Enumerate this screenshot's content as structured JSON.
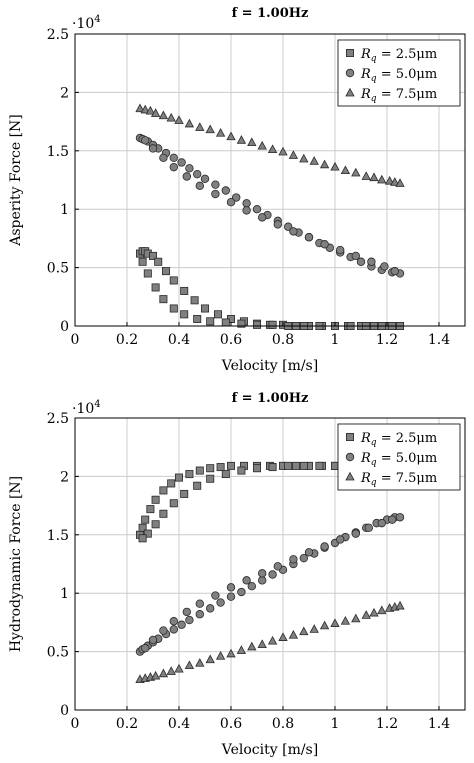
{
  "chart_data": [
    {
      "type": "scatter",
      "title": "f = 1.00Hz",
      "xlabel": "Velocity [m/s]",
      "ylabel": "Asperity Force [N]",
      "y_multiplier": "·10",
      "y_multiplier_exp": "4",
      "xlim": [
        0,
        1.5
      ],
      "ylim": [
        0,
        2.5
      ],
      "xticks": [
        "0",
        "0.2",
        "0.4",
        "0.6",
        "0.8",
        "1",
        "1.2",
        "1.4"
      ],
      "yticks": [
        "0",
        "0.5",
        "1",
        "1.5",
        "2",
        "2.5"
      ],
      "grid": true,
      "legend_position": "top-right",
      "series": [
        {
          "name": "2.5μm",
          "var": "R",
          "sub": "q",
          "marker": "square",
          "x": [
            0.25,
            0.26,
            0.27,
            0.28,
            0.3,
            0.32,
            0.35,
            0.38,
            0.42,
            0.46,
            0.5,
            0.55,
            0.6,
            0.65,
            0.7,
            0.75,
            0.8,
            0.85,
            0.9,
            0.95,
            1.0,
            1.05,
            1.1,
            1.15,
            1.2,
            1.25,
            1.22,
            1.18,
            1.12,
            1.06,
            1.0,
            0.94,
            0.88,
            0.82,
            0.76,
            0.7,
            0.64,
            0.58,
            0.52,
            0.47,
            0.42,
            0.38,
            0.34,
            0.31,
            0.28,
            0.26
          ],
          "y": [
            0.62,
            0.64,
            0.64,
            0.62,
            0.6,
            0.55,
            0.47,
            0.39,
            0.3,
            0.22,
            0.15,
            0.1,
            0.06,
            0.04,
            0.02,
            0.01,
            0.01,
            0.0,
            0.0,
            0.0,
            0.0,
            0.0,
            0.0,
            0.0,
            0.0,
            0.0,
            0.0,
            0.0,
            0.0,
            0.0,
            0.0,
            0.0,
            0.0,
            0.0,
            0.01,
            0.01,
            0.02,
            0.03,
            0.04,
            0.06,
            0.1,
            0.15,
            0.23,
            0.33,
            0.45,
            0.55
          ]
        },
        {
          "name": "5.0μm",
          "var": "R",
          "sub": "q",
          "marker": "circle",
          "x": [
            0.25,
            0.26,
            0.28,
            0.3,
            0.32,
            0.35,
            0.38,
            0.41,
            0.44,
            0.47,
            0.5,
            0.54,
            0.58,
            0.62,
            0.66,
            0.7,
            0.74,
            0.78,
            0.82,
            0.86,
            0.9,
            0.94,
            0.98,
            1.02,
            1.06,
            1.1,
            1.14,
            1.18,
            1.22,
            1.25,
            1.23,
            1.19,
            1.14,
            1.08,
            1.02,
            0.96,
            0.9,
            0.84,
            0.78,
            0.72,
            0.66,
            0.6,
            0.54,
            0.48,
            0.43,
            0.38,
            0.34,
            0.3,
            0.27
          ],
          "y": [
            1.61,
            1.6,
            1.58,
            1.55,
            1.52,
            1.48,
            1.44,
            1.4,
            1.35,
            1.3,
            1.26,
            1.21,
            1.16,
            1.1,
            1.05,
            1.0,
            0.95,
            0.9,
            0.85,
            0.8,
            0.76,
            0.71,
            0.67,
            0.63,
            0.59,
            0.55,
            0.51,
            0.48,
            0.46,
            0.45,
            0.47,
            0.51,
            0.55,
            0.6,
            0.65,
            0.7,
            0.76,
            0.81,
            0.87,
            0.93,
            0.99,
            1.06,
            1.13,
            1.2,
            1.28,
            1.36,
            1.44,
            1.52,
            1.59
          ]
        },
        {
          "name": "7.5μm",
          "var": "R",
          "sub": "q",
          "marker": "triangle",
          "x": [
            0.25,
            0.27,
            0.29,
            0.31,
            0.34,
            0.37,
            0.4,
            0.44,
            0.48,
            0.52,
            0.56,
            0.6,
            0.64,
            0.68,
            0.72,
            0.76,
            0.8,
            0.84,
            0.88,
            0.92,
            0.96,
            1.0,
            1.04,
            1.08,
            1.12,
            1.15,
            1.18,
            1.21,
            1.23,
            1.25
          ],
          "y": [
            1.86,
            1.85,
            1.84,
            1.82,
            1.8,
            1.78,
            1.76,
            1.73,
            1.7,
            1.68,
            1.65,
            1.62,
            1.59,
            1.57,
            1.54,
            1.51,
            1.49,
            1.46,
            1.43,
            1.41,
            1.38,
            1.36,
            1.33,
            1.31,
            1.28,
            1.27,
            1.25,
            1.24,
            1.23,
            1.22
          ]
        }
      ]
    },
    {
      "type": "scatter",
      "title": "f = 1.00Hz",
      "xlabel": "Velocity [m/s]",
      "ylabel": "Hydrodynamic Force [N]",
      "y_multiplier": "·10",
      "y_multiplier_exp": "4",
      "xlim": [
        0,
        1.5
      ],
      "ylim": [
        0,
        2.5
      ],
      "xticks": [
        "0",
        "0.2",
        "0.4",
        "0.6",
        "0.8",
        "1",
        "1.2",
        "1.4"
      ],
      "yticks": [
        "0",
        "0.5",
        "1",
        "1.5",
        "2",
        "2.5"
      ],
      "grid": true,
      "legend_position": "top-right",
      "series": [
        {
          "name": "2.5μm",
          "var": "R",
          "sub": "q",
          "marker": "square",
          "x": [
            0.25,
            0.26,
            0.27,
            0.29,
            0.31,
            0.34,
            0.37,
            0.4,
            0.44,
            0.48,
            0.52,
            0.56,
            0.6,
            0.65,
            0.7,
            0.75,
            0.8,
            0.85,
            0.9,
            0.95,
            1.0,
            1.05,
            1.1,
            1.15,
            1.2,
            1.25,
            1.22,
            1.17,
            1.12,
            1.06,
            1.0,
            0.94,
            0.88,
            0.82,
            0.76,
            0.7,
            0.64,
            0.58,
            0.52,
            0.47,
            0.42,
            0.38,
            0.34,
            0.31,
            0.28,
            0.26
          ],
          "y": [
            1.5,
            1.56,
            1.63,
            1.72,
            1.8,
            1.88,
            1.94,
            1.99,
            2.02,
            2.05,
            2.07,
            2.08,
            2.09,
            2.09,
            2.09,
            2.09,
            2.09,
            2.09,
            2.09,
            2.09,
            2.09,
            2.1,
            2.1,
            2.1,
            2.1,
            2.1,
            2.1,
            2.1,
            2.1,
            2.1,
            2.09,
            2.09,
            2.09,
            2.09,
            2.08,
            2.07,
            2.05,
            2.02,
            1.98,
            1.92,
            1.85,
            1.77,
            1.68,
            1.59,
            1.51,
            1.47
          ]
        },
        {
          "name": "5.0μm",
          "var": "R",
          "sub": "q",
          "marker": "circle",
          "x": [
            0.25,
            0.26,
            0.28,
            0.3,
            0.32,
            0.35,
            0.38,
            0.41,
            0.44,
            0.48,
            0.52,
            0.56,
            0.6,
            0.64,
            0.68,
            0.72,
            0.76,
            0.8,
            0.84,
            0.88,
            0.92,
            0.96,
            1.0,
            1.04,
            1.08,
            1.12,
            1.16,
            1.2,
            1.23,
            1.25,
            1.22,
            1.18,
            1.13,
            1.08,
            1.02,
            0.96,
            0.9,
            0.84,
            0.78,
            0.72,
            0.66,
            0.6,
            0.54,
            0.48,
            0.43,
            0.38,
            0.34,
            0.3,
            0.27
          ],
          "y": [
            0.5,
            0.52,
            0.55,
            0.58,
            0.61,
            0.65,
            0.69,
            0.73,
            0.77,
            0.82,
            0.87,
            0.92,
            0.97,
            1.01,
            1.06,
            1.11,
            1.16,
            1.2,
            1.25,
            1.3,
            1.34,
            1.39,
            1.43,
            1.48,
            1.52,
            1.56,
            1.6,
            1.63,
            1.65,
            1.65,
            1.63,
            1.6,
            1.56,
            1.51,
            1.46,
            1.4,
            1.35,
            1.29,
            1.23,
            1.17,
            1.11,
            1.05,
            0.98,
            0.91,
            0.84,
            0.76,
            0.68,
            0.6,
            0.53
          ]
        },
        {
          "name": "7.5μm",
          "var": "R",
          "sub": "q",
          "marker": "triangle",
          "x": [
            0.25,
            0.27,
            0.29,
            0.31,
            0.34,
            0.37,
            0.4,
            0.44,
            0.48,
            0.52,
            0.56,
            0.6,
            0.64,
            0.68,
            0.72,
            0.76,
            0.8,
            0.84,
            0.88,
            0.92,
            0.96,
            1.0,
            1.04,
            1.08,
            1.12,
            1.15,
            1.18,
            1.21,
            1.23,
            1.25
          ],
          "y": [
            0.26,
            0.27,
            0.28,
            0.29,
            0.31,
            0.33,
            0.35,
            0.38,
            0.4,
            0.43,
            0.46,
            0.48,
            0.51,
            0.54,
            0.56,
            0.59,
            0.62,
            0.64,
            0.67,
            0.69,
            0.72,
            0.74,
            0.76,
            0.78,
            0.81,
            0.83,
            0.85,
            0.87,
            0.88,
            0.89
          ]
        }
      ]
    }
  ]
}
